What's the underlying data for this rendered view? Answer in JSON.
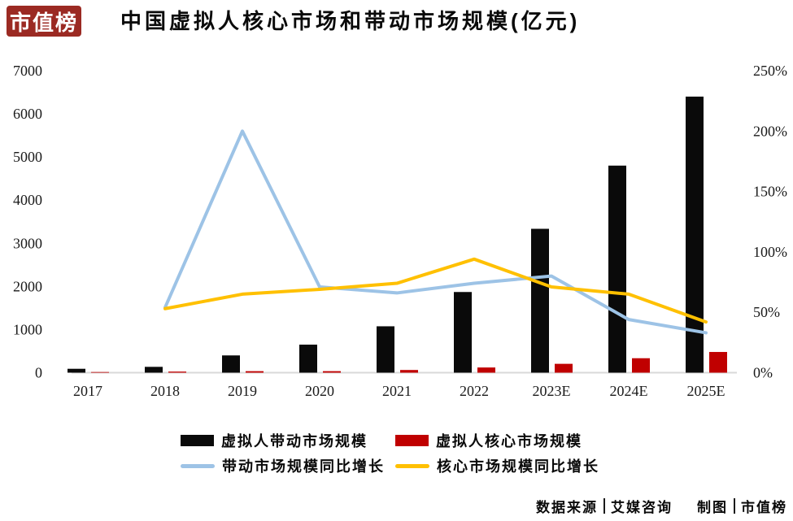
{
  "logo": {
    "text": "市值榜"
  },
  "header": {
    "title": "中国虚拟人核心市场和带动市场规模(亿元)"
  },
  "chart_data": {
    "type": "bar+line",
    "title": "中国虚拟人核心市场和带动市场规模(亿元)",
    "unit": "亿元",
    "categories": [
      "2017",
      "2018",
      "2019",
      "2020",
      "2021",
      "2022",
      "2023E",
      "2024E",
      "2025E"
    ],
    "series": [
      {
        "name": "虚拟人带动市场规模",
        "type": "bar",
        "axis": "left",
        "color": "#0a0a0a",
        "values": [
          90,
          135,
          400,
          650,
          1075,
          1870,
          3335,
          4800,
          6400
        ]
      },
      {
        "name": "虚拟人核心市场规模",
        "type": "bar",
        "axis": "left",
        "color": "#c00000",
        "values": [
          15,
          25,
          35,
          35,
          62,
          120,
          205,
          335,
          480
        ]
      },
      {
        "name": "带动市场规模同比增长",
        "type": "line",
        "axis": "right",
        "color": "#9dc3e6",
        "values": [
          null,
          54,
          200,
          71,
          66,
          74,
          80,
          44,
          33
        ]
      },
      {
        "name": "核心市场规模同比增长",
        "type": "line",
        "axis": "right",
        "color": "#ffc000",
        "values": [
          null,
          53,
          65,
          69,
          74,
          94,
          71,
          65,
          42
        ]
      }
    ],
    "left_axis": {
      "min": 0,
      "max": 7000,
      "ticks": [
        0,
        1000,
        2000,
        3000,
        4000,
        5000,
        6000,
        7000
      ]
    },
    "right_axis": {
      "min": 0,
      "max": 250,
      "ticks": [
        "0%",
        "50%",
        "100%",
        "150%",
        "200%",
        "250%"
      ]
    },
    "grid": false,
    "legend_position": "bottom"
  },
  "footer": {
    "source_label": "数据来源",
    "source_value": "艾媒咨询",
    "credit_label": "制图",
    "credit_value": "市值榜"
  }
}
